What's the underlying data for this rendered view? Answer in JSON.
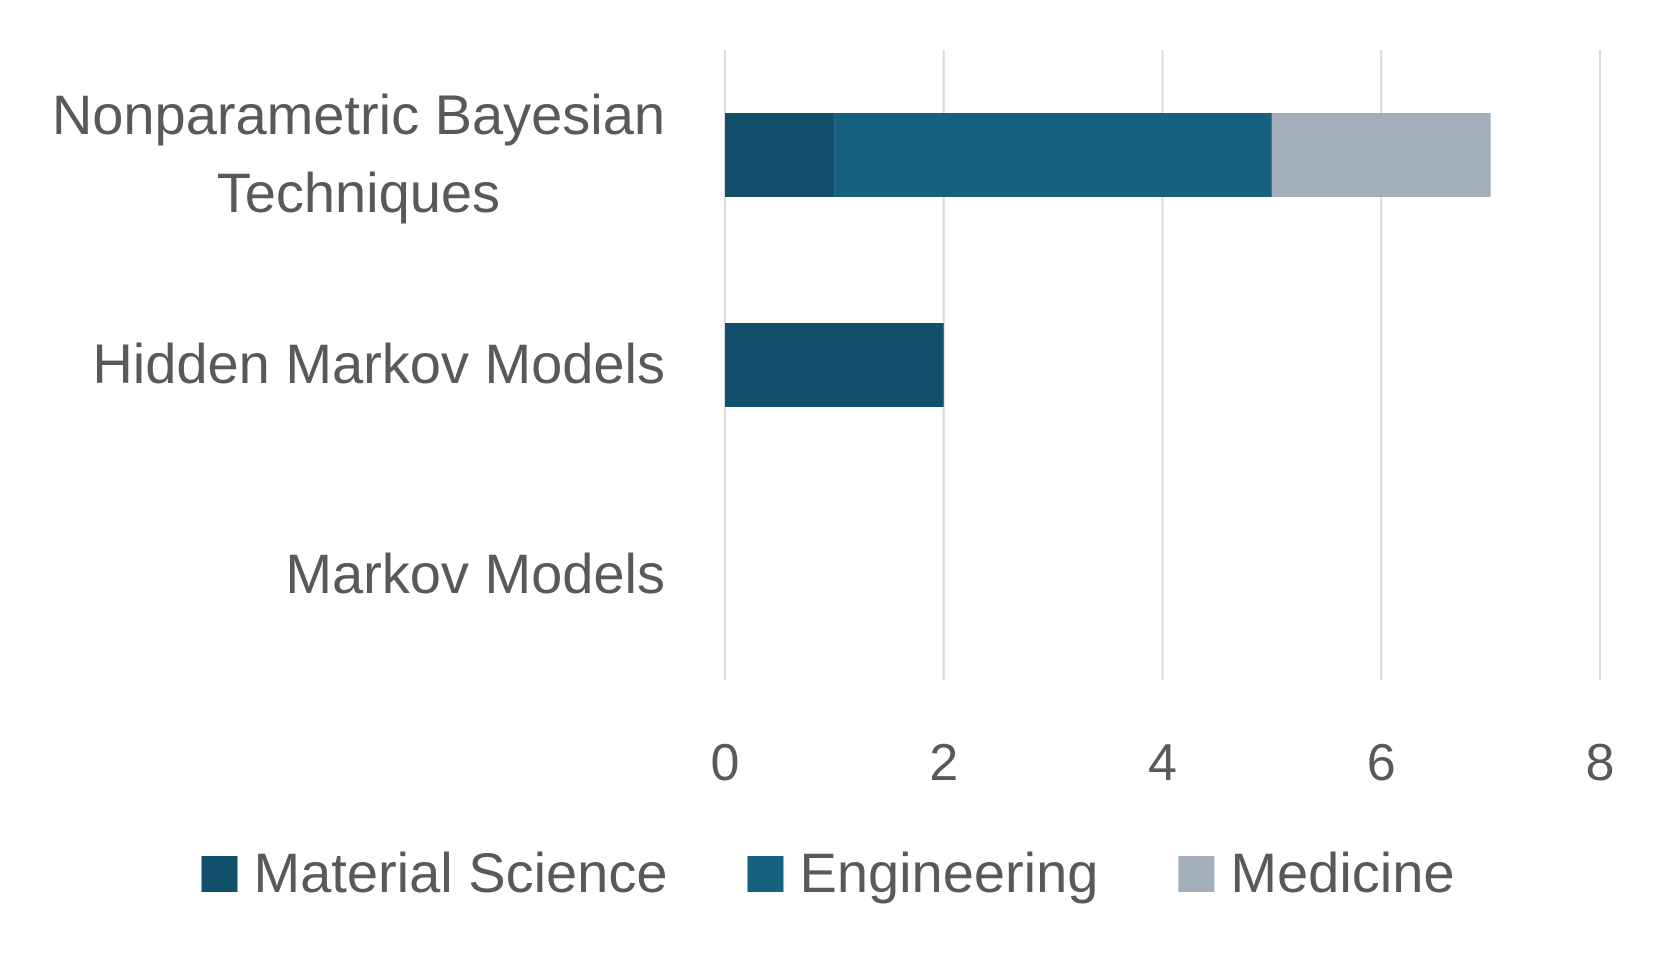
{
  "chart_data": {
    "type": "bar",
    "orientation": "horizontal",
    "stacked": true,
    "title": "",
    "xlabel": "",
    "ylabel": "",
    "categories": [
      [
        "Nonparametric Bayesian",
        "Techniques"
      ],
      [
        "Hidden Markov Models"
      ],
      [
        "Markov Models"
      ]
    ],
    "series": [
      {
        "name": "Material Science",
        "color": "#124f6b",
        "values": [
          1,
          2,
          0
        ]
      },
      {
        "name": "Engineering",
        "color": "#17607f",
        "values": [
          4,
          0,
          0
        ]
      },
      {
        "name": "Medicine",
        "color": "#a2afba",
        "values": [
          2,
          0,
          0
        ]
      }
    ],
    "xlim": [
      0,
      8
    ],
    "xticks": [
      0,
      2,
      4,
      6,
      8
    ],
    "xtick_labels": [
      "0",
      "2",
      "4",
      "6",
      "8"
    ],
    "grid": true,
    "legend_position": "bottom",
    "text_color": "#595959",
    "grid_color": "#d9d9d9"
  }
}
